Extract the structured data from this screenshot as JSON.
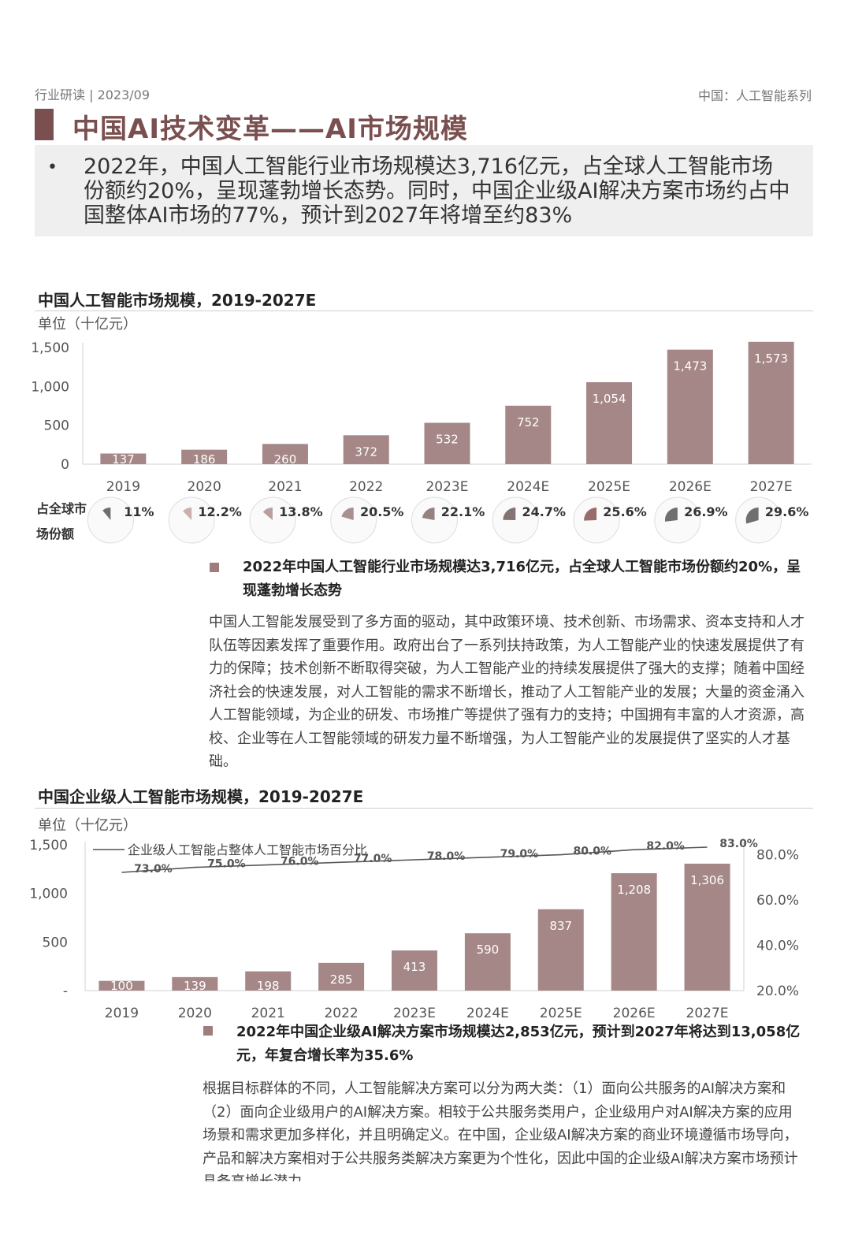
{
  "header": {
    "left": "行业研读 | 2023/09",
    "right": "中国：人工智能系列"
  },
  "title": "中国AI技术变革——AI市场规模",
  "summary": {
    "bullet": "•",
    "text": "2022年，中国人工智能行业市场规模达3,716亿元，占全球人工智能市场份额约20%，呈现蓬勃增长态势。同时，中国企业级AI解决方案市场约占中国整体AI市场的77%，预计到2027年将增至约83%"
  },
  "section1": {
    "title": "中国人工智能市场规模，2019-2027E",
    "unit": "单位（十亿元）",
    "share_label": "占全球市场份额",
    "bullet": "2022年中国人工智能行业市场规模达3,716亿元，占全球人工智能市场份额约20%，呈现蓬勃增长态势",
    "paragraph": "中国人工智能发展受到了多方面的驱动，其中政策环境、技术创新、市场需求、资本支持和人才队伍等因素发挥了重要作用。政府出台了一系列扶持政策，为人工智能产业的快速发展提供了有力的保障；技术创新不断取得突破，为人工智能产业的持续发展提供了强大的支撑；随着中国经济社会的快速发展，对人工智能的需求不断增长，推动了人工智能产业的发展；大量的资金涌入人工智能领域，为企业的研发、市场推广等提供了强有力的支持；中国拥有丰富的人才资源，高校、企业等在人工智能领域的研发力量不断增强，为人工智能产业的发展提供了坚实的人才基础。"
  },
  "section2": {
    "title": "中国企业级人工智能市场规模，2019-2027E",
    "unit": "单位（十亿元）",
    "bullet": "2022年中国企业级AI解决方案市场规模达2,853亿元，预计到2027年将达到13,058亿元，年复合增长率为35.6%",
    "paragraph": "根据目标群体的不同，人工智能解决方案可以分为两大类：（1）面向公共服务的AI解决方案和（2）面向企业级用户的AI解决方案。相较于公共服务类用户，企业级用户对AI解决方案的应用场景和需求更加多样化，并且明确定义。在中国，企业级AI解决方案的商业环境遵循市场导向，产品和解决方案相对于公共服务类解决方案更为个性化，因此中国的企业级AI解决方案市场预计具备高增长潜力。"
  },
  "colors": {
    "bar": "#a58787",
    "title": "#7a4f4f",
    "pie": "#8a7474"
  },
  "chart_data": [
    {
      "type": "bar",
      "title": "中国人工智能市场规模，2019-2027E",
      "ylabel": "单位（十亿元）",
      "categories": [
        "2019",
        "2020",
        "2021",
        "2022",
        "2023E",
        "2024E",
        "2025E",
        "2026E",
        "2027E"
      ],
      "values": [
        137,
        186,
        260,
        372,
        532,
        752,
        1054,
        1473,
        1573
      ],
      "value_labels": [
        "137",
        "186",
        "260",
        "372",
        "532",
        "752",
        "1,054",
        "1,473",
        "1,573"
      ],
      "yticks": [
        "0",
        "500",
        "1,000",
        "1,500"
      ],
      "ytick_values": [
        0,
        500,
        1000,
        1500
      ],
      "ylim": [
        0,
        1500
      ],
      "share": {
        "label": "占全球市场份额",
        "values": [
          11,
          12.2,
          13.8,
          20.5,
          22.1,
          24.7,
          25.6,
          26.9,
          29.6
        ],
        "labels": [
          "11%",
          "12.2%",
          "13.8%",
          "20.5%",
          "22.1%",
          "24.7%",
          "25.6%",
          "26.9%",
          "29.6%"
        ]
      }
    },
    {
      "type": "bar",
      "title": "中国企业级人工智能市场规模，2019-2027E",
      "ylabel": "单位（十亿元）",
      "categories": [
        "2019",
        "2020",
        "2021",
        "2022",
        "2023E",
        "2024E",
        "2025E",
        "2026E",
        "2027E"
      ],
      "values": [
        100,
        139,
        198,
        285,
        413,
        590,
        837,
        1208,
        1306
      ],
      "value_labels": [
        "100",
        "139",
        "198",
        "285",
        "413",
        "590",
        "837",
        "1,208",
        "1,306"
      ],
      "yticks": [
        "-",
        "500",
        "1,000",
        "1,500"
      ],
      "ytick_values": [
        0,
        500,
        1000,
        1500
      ],
      "ylim": [
        0,
        1500
      ],
      "line": {
        "name": "企业级人工智能占整体人工智能市场百分比",
        "values": [
          73,
          75,
          76,
          77,
          78,
          79,
          80,
          82,
          83
        ],
        "labels": [
          "73.0%",
          "75.0%",
          "76.0%",
          "77.0%",
          "78.0%",
          "79.0%",
          "80.0%",
          "82.0%",
          "83.0%"
        ],
        "yticks": [
          "20.0%",
          "40.0%",
          "60.0%",
          "80.0%"
        ],
        "ytick_values": [
          20,
          40,
          60,
          80
        ],
        "ylim": [
          20,
          85
        ]
      }
    }
  ]
}
